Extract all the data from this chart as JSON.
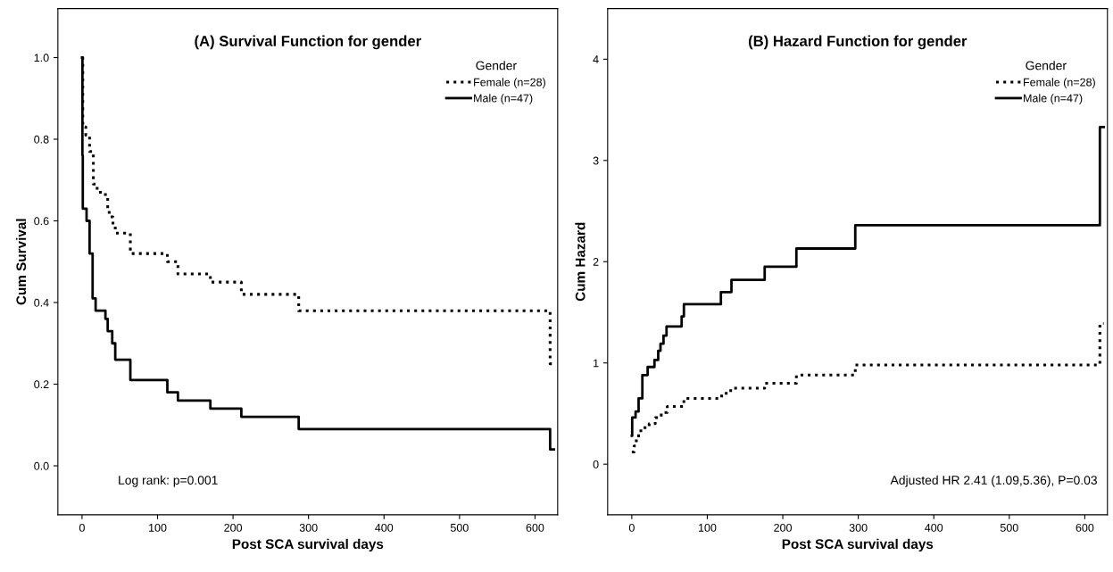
{
  "chart_data": [
    {
      "type": "step",
      "title": "(A) Survival Function for gender",
      "xlabel": "Post SCA survival days",
      "ylabel": "Cum Survival",
      "legend_title": "Gender",
      "legend": "top right",
      "grid": false,
      "xlim": [
        -32,
        630
      ],
      "xticks": [
        0,
        100,
        200,
        300,
        400,
        500,
        600
      ],
      "ylim": [
        -0.12,
        1.12
      ],
      "yticks": [
        {
          "value": 0,
          "label": "0.0"
        },
        0.2,
        0.4,
        0.6,
        0.8,
        {
          "value": 1,
          "label": "1.0"
        }
      ],
      "series": [
        {
          "name": "Female (n=28)",
          "color": "#000000",
          "line_style": "dotted",
          "x": [
            0,
            1,
            5,
            10,
            15,
            20,
            31,
            34,
            36,
            41,
            44,
            64,
            113,
            127,
            170,
            211,
            287,
            620,
            625
          ],
          "values": [
            1.0,
            0.83,
            0.81,
            0.77,
            0.69,
            0.67,
            0.66,
            0.63,
            0.61,
            0.59,
            0.57,
            0.52,
            0.5,
            0.47,
            0.45,
            0.42,
            0.38,
            0.25,
            0.25
          ]
        },
        {
          "name": "Male (n=47)",
          "color": "#000000",
          "line_style": "solid",
          "x": [
            0,
            0.5,
            1,
            6,
            10,
            14,
            18,
            31,
            34,
            40,
            44,
            64,
            113,
            127,
            170,
            211,
            287,
            620,
            625
          ],
          "values": [
            1.0,
            0.76,
            0.63,
            0.6,
            0.52,
            0.41,
            0.38,
            0.36,
            0.33,
            0.3,
            0.26,
            0.21,
            0.18,
            0.16,
            0.14,
            0.12,
            0.09,
            0.04,
            0.04
          ]
        }
      ],
      "annotations": [
        "Log rank: p=0.001"
      ]
    },
    {
      "type": "step",
      "title": "(B) Hazard Function for gender",
      "xlabel": "Post SCA survival days",
      "ylabel": "Cum Hazard",
      "legend_title": "Gender",
      "legend": "top right",
      "grid": false,
      "xlim": [
        -32,
        630
      ],
      "xticks": [
        0,
        100,
        200,
        300,
        400,
        500,
        600
      ],
      "ylim": [
        -0.5,
        4.5
      ],
      "yticks": [
        0,
        1,
        2,
        3,
        4
      ],
      "series": [
        {
          "name": "Female (n=28)",
          "color": "#000000",
          "line_style": "dotted",
          "x": [
            0,
            3,
            6,
            9,
            12,
            23,
            31,
            39,
            47,
            69,
            119,
            131,
            176,
            218,
            296,
            620,
            625
          ],
          "values": [
            0.12,
            0.18,
            0.25,
            0.3,
            0.36,
            0.4,
            0.46,
            0.51,
            0.57,
            0.65,
            0.7,
            0.75,
            0.8,
            0.88,
            0.98,
            1.39,
            1.39
          ]
        },
        {
          "name": "Male (n=47)",
          "color": "#000000",
          "line_style": "solid",
          "x": [
            0,
            0.5,
            5,
            9,
            14,
            21,
            30,
            35,
            38,
            42,
            46,
            66,
            69,
            118,
            132,
            176,
            218,
            296,
            620,
            625
          ],
          "values": [
            0.28,
            0.46,
            0.52,
            0.65,
            0.88,
            0.96,
            1.03,
            1.12,
            1.19,
            1.27,
            1.36,
            1.46,
            1.58,
            1.7,
            1.82,
            1.95,
            2.13,
            2.36,
            3.33,
            3.33
          ]
        }
      ],
      "annotations": [
        "Adjusted HR 2.41 (1.09,5.36), P=0.03"
      ]
    }
  ]
}
